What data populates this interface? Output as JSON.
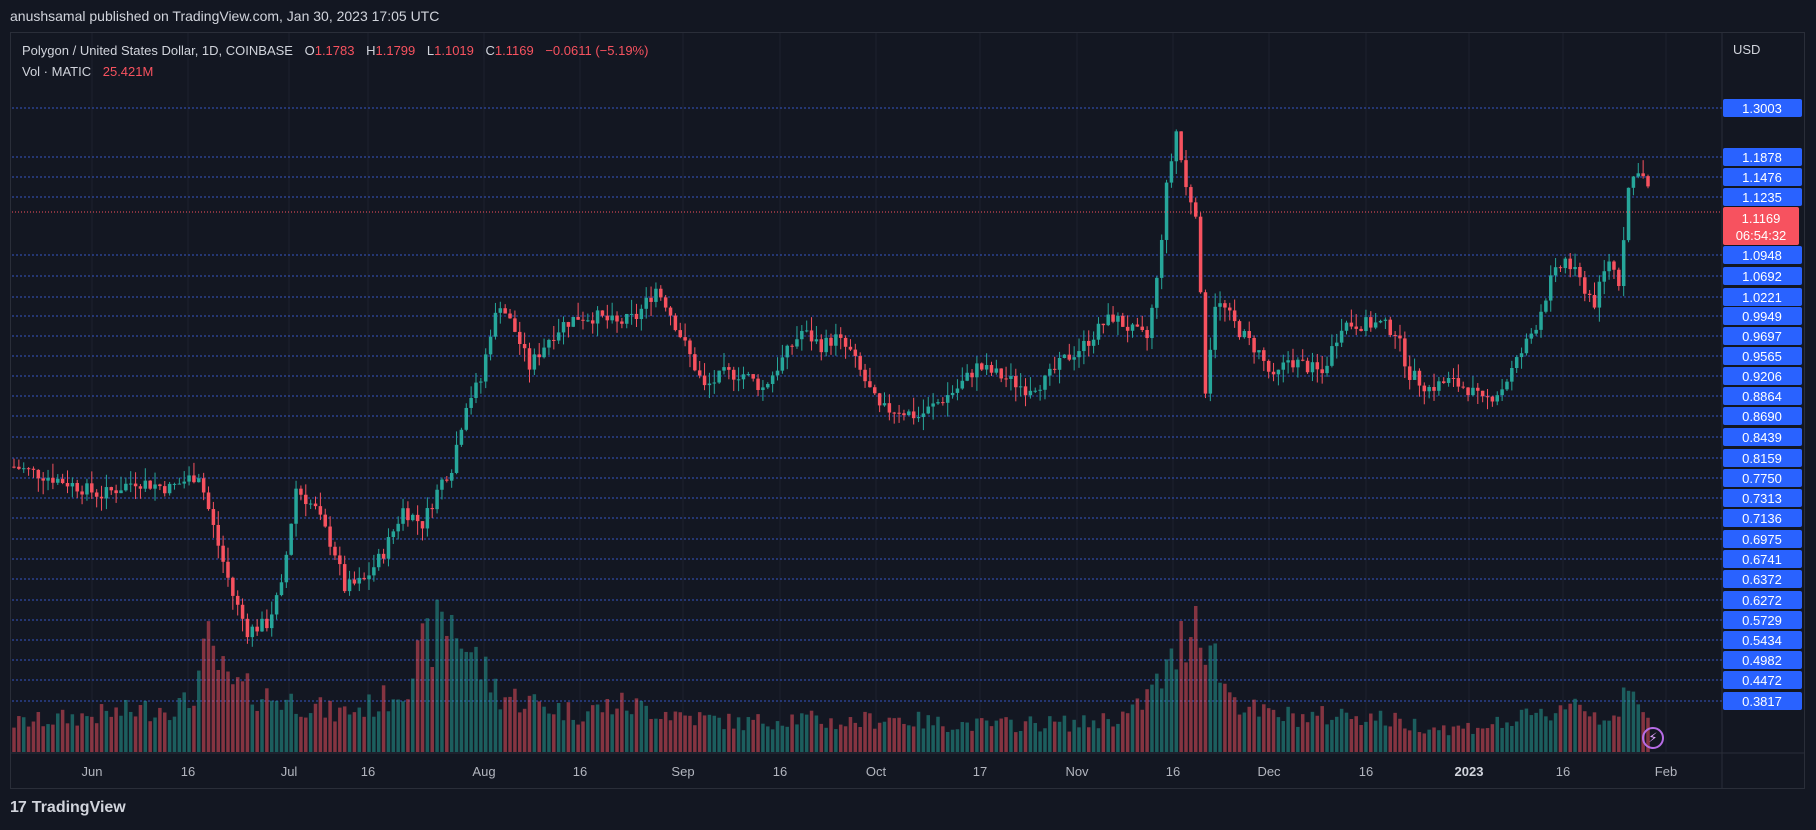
{
  "header": {
    "publisher_line": "anushsamal published on TradingView.com, Jan 30, 2023 17:05 UTC"
  },
  "legend": {
    "symbol": "Polygon / United States Dollar, 1D, COINBASE",
    "o_label": "O",
    "o_value": "1.1783",
    "h_label": "H",
    "h_value": "1.1799",
    "l_label": "L",
    "l_value": "1.1019",
    "c_label": "C",
    "c_value": "1.1169",
    "change": "−0.0611 (−5.19%)",
    "vol_label": "Vol · MATIC",
    "vol_value": "25.421M"
  },
  "price_axis": {
    "currency": "USD",
    "current_price": "1.1169",
    "countdown": "06:54:32"
  },
  "footer": {
    "brand": "TradingView"
  },
  "colors": {
    "background": "#131722",
    "up": "#26a69a",
    "down": "#f7525f",
    "level_line": "#3a5fe0",
    "label_bg": "#2962ff",
    "current_price_bg": "#f7525f"
  },
  "chart_data": {
    "type": "candlestick",
    "x_tick_labels": [
      "Jun",
      "16",
      "Jul",
      "16",
      "Aug",
      "16",
      "Sep",
      "16",
      "Oct",
      "17",
      "Nov",
      "16",
      "Dec",
      "16",
      "2023",
      "16",
      "Feb"
    ],
    "y_range": [
      0.36,
      1.33
    ],
    "horizontal_levels": [
      "1.3003",
      "1.1878",
      "1.1476",
      "1.1235",
      "1.0948",
      "1.0692",
      "1.0221",
      "0.9949",
      "0.9697",
      "0.9565",
      "0.9206",
      "0.8864",
      "0.8690",
      "0.8439",
      "0.8159",
      "0.7750",
      "0.7313",
      "0.7136",
      "0.6975",
      "0.6741",
      "0.6372",
      "0.6272",
      "0.5729",
      "0.5434",
      "0.4982",
      "0.4472",
      "0.3817"
    ],
    "last_price": 1.1169,
    "anchors": [
      [
        0,
        0.76
      ],
      [
        10,
        0.74
      ],
      [
        18,
        0.72
      ],
      [
        25,
        0.74
      ],
      [
        32,
        0.73
      ],
      [
        38,
        0.75
      ],
      [
        42,
        0.65
      ],
      [
        45,
        0.58
      ],
      [
        48,
        0.53
      ],
      [
        52,
        0.54
      ],
      [
        55,
        0.59
      ],
      [
        58,
        0.73
      ],
      [
        62,
        0.7
      ],
      [
        66,
        0.64
      ],
      [
        68,
        0.59
      ],
      [
        72,
        0.6
      ],
      [
        76,
        0.64
      ],
      [
        80,
        0.7
      ],
      [
        84,
        0.68
      ],
      [
        88,
        0.74
      ],
      [
        90,
        0.76
      ],
      [
        93,
        0.85
      ],
      [
        96,
        0.88
      ],
      [
        98,
        0.95
      ],
      [
        100,
        0.99
      ],
      [
        103,
        0.95
      ],
      [
        106,
        0.9
      ],
      [
        110,
        0.94
      ],
      [
        113,
        0.96
      ],
      [
        116,
        0.97
      ],
      [
        120,
        0.97
      ],
      [
        124,
        0.96
      ],
      [
        128,
        0.97
      ],
      [
        132,
        1.01
      ],
      [
        134,
        0.99
      ],
      [
        138,
        0.93
      ],
      [
        142,
        0.87
      ],
      [
        146,
        0.89
      ],
      [
        150,
        0.89
      ],
      [
        154,
        0.87
      ],
      [
        158,
        0.91
      ],
      [
        162,
        0.95
      ],
      [
        166,
        0.93
      ],
      [
        169,
        0.94
      ],
      [
        172,
        0.92
      ],
      [
        175,
        0.88
      ],
      [
        178,
        0.84
      ],
      [
        182,
        0.84
      ],
      [
        186,
        0.83
      ],
      [
        190,
        0.85
      ],
      [
        194,
        0.87
      ],
      [
        198,
        0.9
      ],
      [
        202,
        0.89
      ],
      [
        205,
        0.88
      ],
      [
        208,
        0.87
      ],
      [
        212,
        0.88
      ],
      [
        216,
        0.91
      ],
      [
        220,
        0.93
      ],
      [
        224,
        0.96
      ],
      [
        226,
        0.97
      ],
      [
        230,
        0.95
      ],
      [
        233,
        0.94
      ],
      [
        235,
        1.02
      ],
      [
        237,
        1.15
      ],
      [
        239,
        1.23
      ],
      [
        241,
        1.15
      ],
      [
        243,
        1.12
      ],
      [
        245,
        0.87
      ],
      [
        247,
        0.99
      ],
      [
        249,
        0.98
      ],
      [
        252,
        0.95
      ],
      [
        256,
        0.92
      ],
      [
        259,
        0.88
      ],
      [
        262,
        0.91
      ],
      [
        266,
        0.9
      ],
      [
        269,
        0.89
      ],
      [
        273,
        0.96
      ],
      [
        277,
        0.96
      ],
      [
        281,
        0.96
      ],
      [
        284,
        0.95
      ],
      [
        287,
        0.89
      ],
      [
        291,
        0.87
      ],
      [
        295,
        0.88
      ],
      [
        299,
        0.87
      ],
      [
        302,
        0.85
      ],
      [
        306,
        0.87
      ],
      [
        310,
        0.92
      ],
      [
        313,
        0.96
      ],
      [
        316,
        1.02
      ],
      [
        319,
        1.05
      ],
      [
        322,
        1.02
      ],
      [
        325,
        0.99
      ],
      [
        328,
        1.05
      ],
      [
        330,
        1.02
      ],
      [
        332,
        1.15
      ],
      [
        334,
        1.18
      ],
      [
        336,
        1.15
      ]
    ],
    "volume_range_bars": [
      0.0,
      1.0
    ],
    "volume_anchors": [
      [
        0,
        0.15
      ],
      [
        20,
        0.2
      ],
      [
        36,
        0.25
      ],
      [
        40,
        0.55
      ],
      [
        44,
        0.35
      ],
      [
        50,
        0.3
      ],
      [
        60,
        0.25
      ],
      [
        66,
        0.2
      ],
      [
        75,
        0.25
      ],
      [
        80,
        0.35
      ],
      [
        86,
        0.6
      ],
      [
        90,
        0.7
      ],
      [
        93,
        0.55
      ],
      [
        100,
        0.3
      ],
      [
        108,
        0.25
      ],
      [
        116,
        0.2
      ],
      [
        124,
        0.25
      ],
      [
        132,
        0.22
      ],
      [
        140,
        0.18
      ],
      [
        150,
        0.15
      ],
      [
        160,
        0.18
      ],
      [
        170,
        0.15
      ],
      [
        180,
        0.18
      ],
      [
        190,
        0.15
      ],
      [
        200,
        0.14
      ],
      [
        210,
        0.15
      ],
      [
        220,
        0.15
      ],
      [
        230,
        0.2
      ],
      [
        235,
        0.35
      ],
      [
        238,
        0.45
      ],
      [
        243,
        0.75
      ],
      [
        246,
        0.55
      ],
      [
        250,
        0.3
      ],
      [
        256,
        0.2
      ],
      [
        266,
        0.18
      ],
      [
        276,
        0.2
      ],
      [
        286,
        0.15
      ],
      [
        296,
        0.12
      ],
      [
        306,
        0.15
      ],
      [
        316,
        0.2
      ],
      [
        320,
        0.28
      ],
      [
        326,
        0.18
      ],
      [
        330,
        0.22
      ],
      [
        332,
        0.3
      ],
      [
        336,
        0.16
      ]
    ]
  }
}
